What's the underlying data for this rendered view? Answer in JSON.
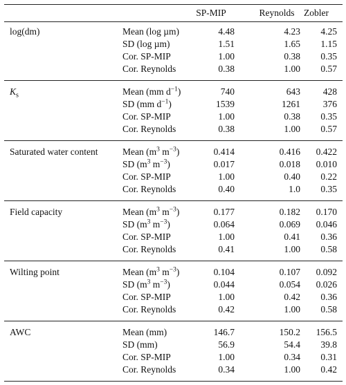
{
  "header": {
    "c1": "SP-MIP",
    "c2": "Reynolds",
    "c3": "Zobler"
  },
  "sections": [
    {
      "name": "log(dm)",
      "rows": [
        {
          "stat": "Mean (log µm)",
          "v": [
            "4.48",
            "4.23",
            "4.25"
          ]
        },
        {
          "stat": "SD (log µm)",
          "v": [
            "1.51",
            "1.65",
            "1.15"
          ]
        },
        {
          "stat": "Cor. SP-MIP",
          "v": [
            "1.00",
            "0.38",
            "0.35"
          ]
        },
        {
          "stat": "Cor. Reynolds",
          "v": [
            "0.38",
            "1.00",
            "0.57"
          ]
        }
      ]
    },
    {
      "name_main": "K",
      "name_sub": "s",
      "rows": [
        {
          "stat_pre": "Mean (mm d",
          "stat_sup": "−1",
          "stat_post": ")",
          "v": [
            "740",
            "643",
            "428"
          ]
        },
        {
          "stat_pre": "SD (mm d",
          "stat_sup": "−1",
          "stat_post": ")",
          "v": [
            "1539",
            "1261",
            "376"
          ]
        },
        {
          "stat": "Cor. SP-MIP",
          "v": [
            "1.00",
            "0.38",
            "0.35"
          ]
        },
        {
          "stat": "Cor. Reynolds",
          "v": [
            "0.38",
            "1.00",
            "0.57"
          ]
        }
      ]
    },
    {
      "name": "Saturated water content",
      "rows": [
        {
          "stat_pre": "Mean (m",
          "stat_sup": "3",
          "stat_mid": " m",
          "stat_sup2": "−3",
          "stat_post": ")",
          "v": [
            "0.414",
            "0.416",
            "0.422"
          ]
        },
        {
          "stat_pre": "SD (m",
          "stat_sup": "3",
          "stat_mid": " m",
          "stat_sup2": "−3",
          "stat_post": ")",
          "v": [
            "0.017",
            "0.018",
            "0.010"
          ]
        },
        {
          "stat": "Cor. SP-MIP",
          "v": [
            "1.00",
            "0.40",
            "0.22"
          ]
        },
        {
          "stat": "Cor. Reynolds",
          "v": [
            "0.40",
            "1.0",
            "0.35"
          ]
        }
      ]
    },
    {
      "name": "Field capacity",
      "rows": [
        {
          "stat_pre": "Mean (m",
          "stat_sup": "3",
          "stat_mid": " m",
          "stat_sup2": "−3",
          "stat_post": ")",
          "v": [
            "0.177",
            "0.182",
            "0.170"
          ]
        },
        {
          "stat_pre": "SD (m",
          "stat_sup": "3",
          "stat_mid": " m",
          "stat_sup2": "−3",
          "stat_post": ")",
          "v": [
            "0.064",
            "0.069",
            "0.046"
          ]
        },
        {
          "stat": "Cor. SP-MIP",
          "v": [
            "1.00",
            "0.41",
            "0.36"
          ]
        },
        {
          "stat": "Cor. Reynolds",
          "v": [
            "0.41",
            "1.00",
            "0.58"
          ]
        }
      ]
    },
    {
      "name": "Wilting point",
      "rows": [
        {
          "stat_pre": "Mean (m",
          "stat_sup": "3",
          "stat_mid": " m",
          "stat_sup2": "−3",
          "stat_post": ")",
          "v": [
            "0.104",
            "0.107",
            "0.092"
          ]
        },
        {
          "stat_pre": "SD (m",
          "stat_sup": "3",
          "stat_mid": " m",
          "stat_sup2": "−3",
          "stat_post": ")",
          "v": [
            "0.044",
            "0.054",
            "0.026"
          ]
        },
        {
          "stat": "Cor. SP-MIP",
          "v": [
            "1.00",
            "0.42",
            "0.36"
          ]
        },
        {
          "stat": "Cor. Reynolds",
          "v": [
            "0.42",
            "1.00",
            "0.58"
          ]
        }
      ]
    },
    {
      "name": "AWC",
      "rows": [
        {
          "stat": "Mean (mm)",
          "v": [
            "146.7",
            "150.2",
            "156.5"
          ]
        },
        {
          "stat": "SD (mm)",
          "v": [
            "56.9",
            "54.4",
            "39.8"
          ]
        },
        {
          "stat": "Cor. SP-MIP",
          "v": [
            "1.00",
            "0.34",
            "0.31"
          ]
        },
        {
          "stat": "Cor. Reynolds",
          "v": [
            "0.34",
            "1.00",
            "0.42"
          ]
        }
      ]
    }
  ]
}
